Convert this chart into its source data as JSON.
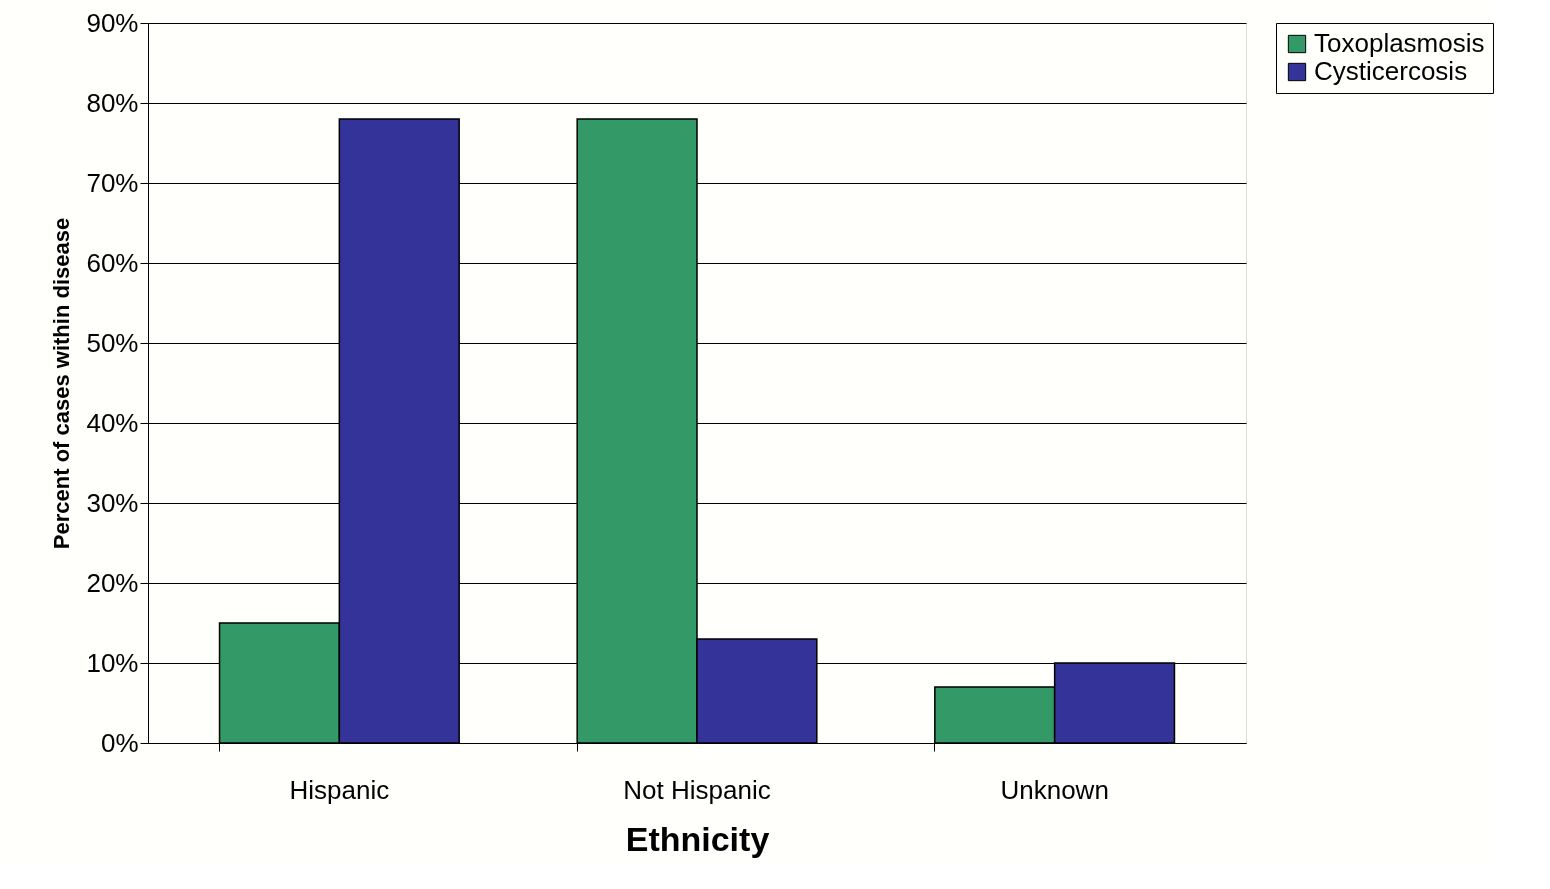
{
  "chart_data": {
    "type": "bar",
    "xlabel": "Ethnicity",
    "ylabel": "Percent of cases within disease",
    "categories": [
      "Hispanic",
      "Not Hispanic",
      "Unknown"
    ],
    "series": [
      {
        "name": "Toxoplasmosis",
        "color": "#339966",
        "values": [
          15,
          78,
          7
        ]
      },
      {
        "name": "Cysticercosis",
        "color": "#333399",
        "values": [
          78,
          13,
          10
        ]
      }
    ],
    "ylim": [
      0,
      90
    ],
    "yticks": [
      {
        "value": 0,
        "label": "0%"
      },
      {
        "value": 10,
        "label": "10%"
      },
      {
        "value": 20,
        "label": "20%"
      },
      {
        "value": 30,
        "label": "30%"
      },
      {
        "value": 40,
        "label": "40%"
      },
      {
        "value": 50,
        "label": "50%"
      },
      {
        "value": 60,
        "label": "60%"
      },
      {
        "value": 70,
        "label": "70%"
      },
      {
        "value": 80,
        "label": "80%"
      },
      {
        "value": 90,
        "label": "90%"
      }
    ],
    "grid": "y",
    "legend": "right"
  }
}
